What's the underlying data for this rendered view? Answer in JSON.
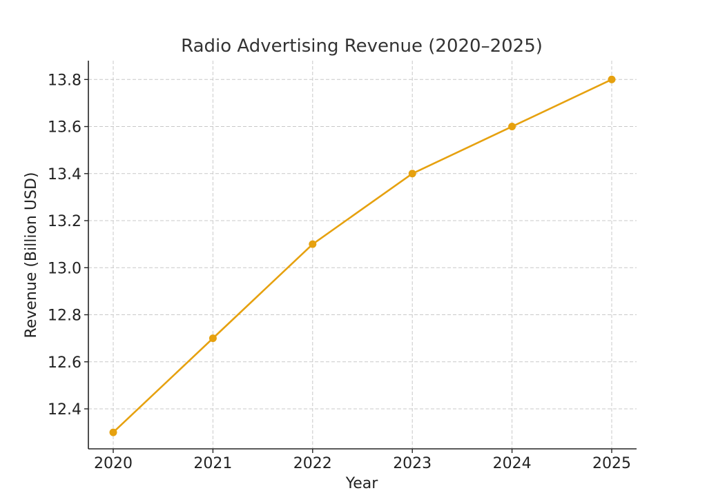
{
  "chart_data": {
    "type": "line",
    "title": "Radio Advertising Revenue (2020–2025)",
    "xlabel": "Year",
    "ylabel": "Revenue (Billion USD)",
    "x": [
      "2020",
      "2021",
      "2022",
      "2023",
      "2024",
      "2025"
    ],
    "yticks": [
      "12.4",
      "12.6",
      "12.8",
      "13.0",
      "13.2",
      "13.4",
      "13.6",
      "13.8"
    ],
    "ylim": [
      12.23,
      13.88
    ],
    "grid": true,
    "series": [
      {
        "values": [
          12.3,
          12.7,
          13.1,
          13.4,
          13.6,
          13.8
        ],
        "color": "#e6a10f",
        "marker": "circle"
      }
    ]
  }
}
